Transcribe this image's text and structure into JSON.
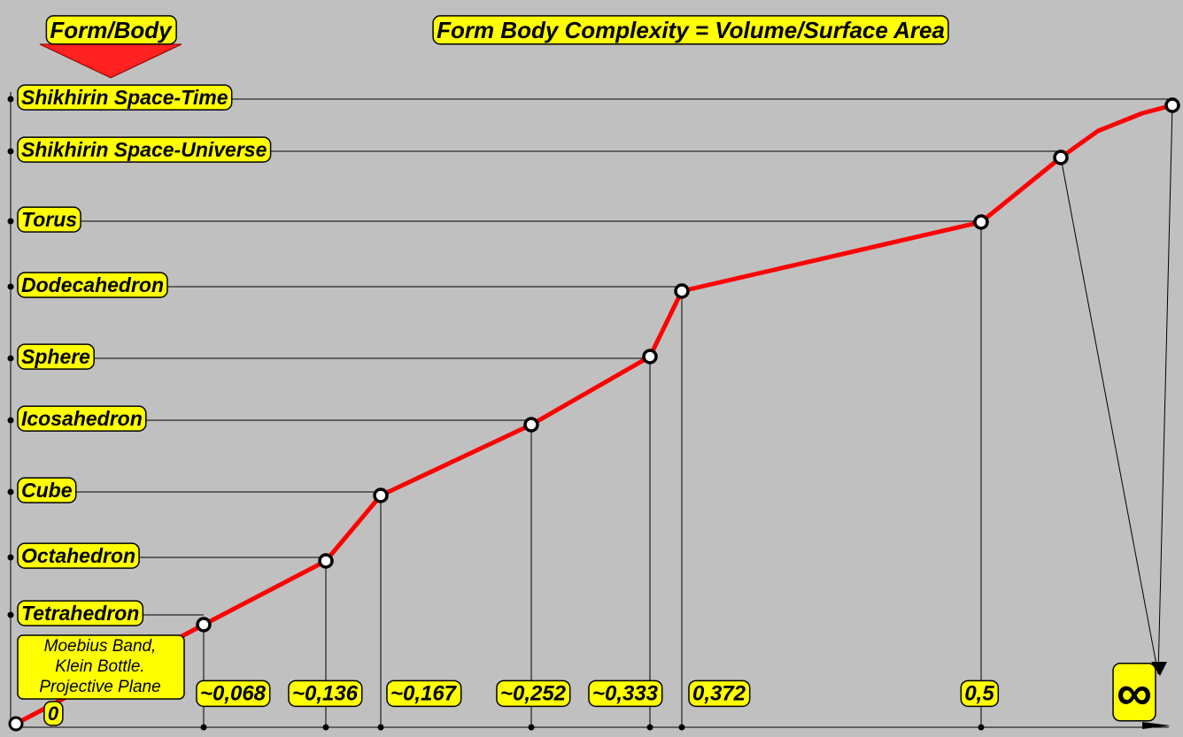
{
  "title": "Form Body Complexity = Volume/Surface Area",
  "axis_label": "Form/Body",
  "origin": {
    "label_lines": [
      "Moebius Band,",
      "Klein Bottle.",
      "Projective Plane"
    ],
    "x_label": "0"
  },
  "nodes": [
    {
      "label": "Tetrahedron",
      "x_label": "~0,068"
    },
    {
      "label": "Octahedron",
      "x_label": "~0,136"
    },
    {
      "label": "Cube",
      "x_label": "~0,167"
    },
    {
      "label": "Icosahedron",
      "x_label": "~0,252"
    },
    {
      "label": "Sphere",
      "x_label": "~0,333"
    },
    {
      "label": "Dodecahedron",
      "x_label": "0,372"
    },
    {
      "label": "Torus",
      "x_label": "0,5"
    },
    {
      "label": "Shikhirin Space-Universe"
    },
    {
      "label": "Shikhirin Space-Time",
      "x_label": "∞"
    }
  ]
}
